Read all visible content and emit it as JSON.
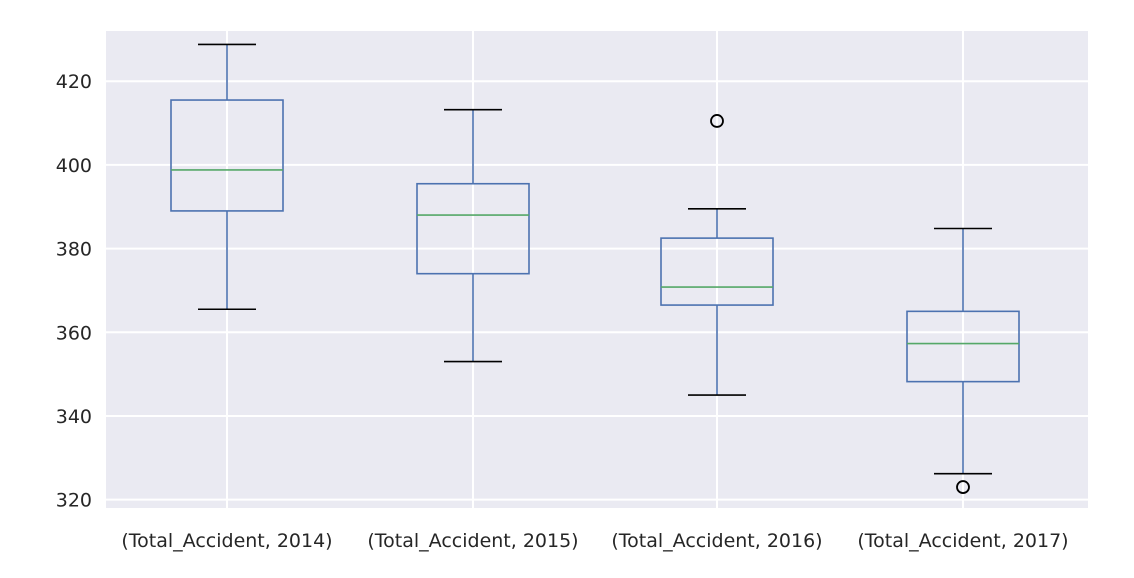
{
  "chart_data": {
    "type": "boxplot",
    "title": "",
    "xlabel": "",
    "ylabel": "",
    "ylim": [
      318,
      432
    ],
    "yticks": [
      320,
      340,
      360,
      380,
      400,
      420
    ],
    "grid": true,
    "categories": [
      "(Total_Accident, 2014)",
      "(Total_Accident, 2015)",
      "(Total_Accident, 2016)",
      "(Total_Accident, 2017)"
    ],
    "boxes": [
      {
        "whisker_low": 365.5,
        "q1": 389,
        "median": 398.8,
        "q3": 415.5,
        "whisker_high": 428.8,
        "outliers": []
      },
      {
        "whisker_low": 353,
        "q1": 374,
        "median": 388,
        "q3": 395.5,
        "whisker_high": 413.2,
        "outliers": []
      },
      {
        "whisker_low": 345,
        "q1": 366.5,
        "median": 370.8,
        "q3": 382.5,
        "whisker_high": 389.5,
        "outliers": [
          410.5
        ]
      },
      {
        "whisker_low": 326.2,
        "q1": 348.2,
        "median": 357.3,
        "q3": 365,
        "whisker_high": 384.8,
        "outliers": [
          323
        ]
      }
    ],
    "colors": {
      "plot_background": "#EAEAF2",
      "grid": "#FFFFFF",
      "box": "#4C72B0",
      "median": "#55A868",
      "whisker_caps": "#000000",
      "outlier_edge": "#000000"
    }
  }
}
